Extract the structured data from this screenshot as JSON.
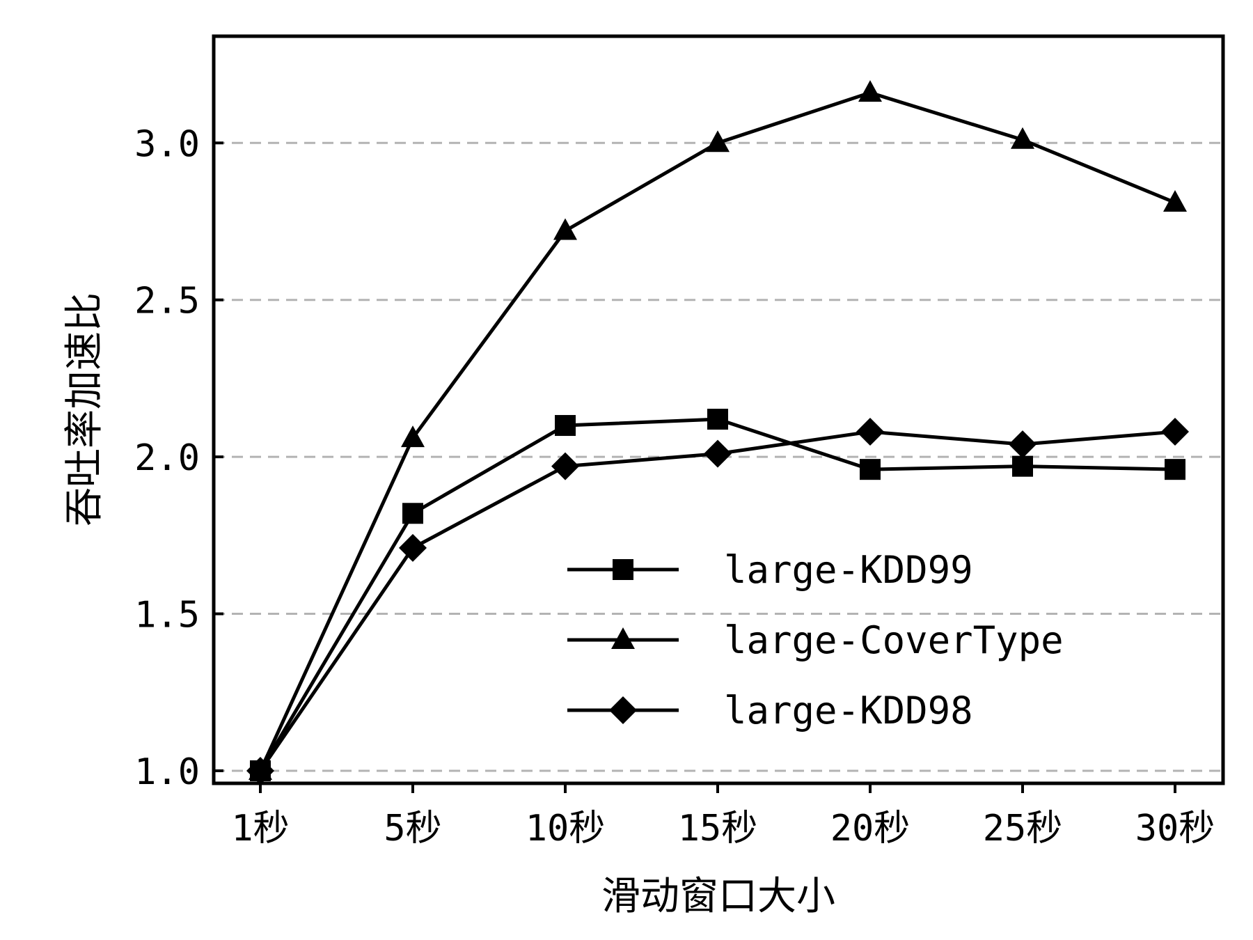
{
  "chart_data": {
    "type": "line",
    "xlabel": "滑动窗口大小",
    "ylabel": "吞吐率加速比",
    "categories": [
      "1秒",
      "5秒",
      "10秒",
      "15秒",
      "20秒",
      "25秒",
      "30秒"
    ],
    "ylim": [
      0.96,
      3.34
    ],
    "yticks": [
      "1.0",
      "1.5",
      "2.0",
      "2.5",
      "3.0"
    ],
    "grid": "horizontal dashed",
    "legend_position": "lower-right",
    "series": [
      {
        "name": "large-KDD99",
        "marker": "square",
        "values": [
          1.0,
          1.82,
          2.1,
          2.12,
          1.96,
          1.97,
          1.96
        ]
      },
      {
        "name": "large-CoverType",
        "marker": "triangle",
        "values": [
          1.0,
          2.06,
          2.72,
          3.0,
          3.16,
          3.01,
          2.81
        ]
      },
      {
        "name": "large-KDD98",
        "marker": "diamond",
        "values": [
          1.0,
          1.71,
          1.97,
          2.01,
          2.08,
          2.04,
          2.08
        ]
      }
    ]
  }
}
